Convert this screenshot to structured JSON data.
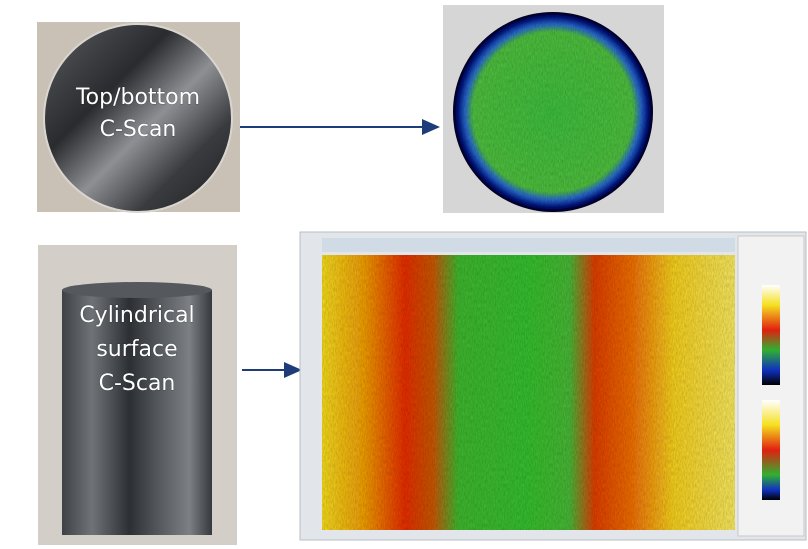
{
  "top": {
    "label_lines": [
      "Top/bottom",
      "C-Scan"
    ]
  },
  "bottom": {
    "label_lines": [
      "Cylindrical",
      "surface",
      "C-Scan"
    ]
  }
}
